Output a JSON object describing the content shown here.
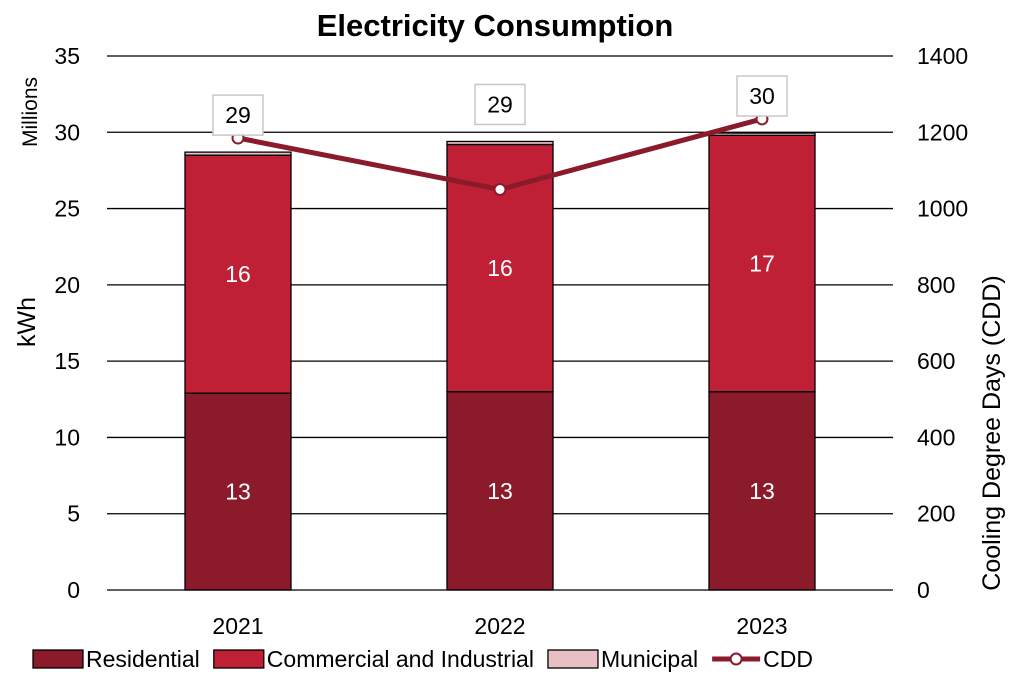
{
  "chart_data": {
    "type": "bar",
    "stacked": true,
    "title": "Electricity Consumption",
    "categories": [
      "2021",
      "2022",
      "2023"
    ],
    "series": [
      {
        "name": "Residential",
        "values": [
          12.9,
          13.0,
          13.0
        ],
        "labels": [
          "13",
          "13",
          "13"
        ],
        "color": "#8B1A2B"
      },
      {
        "name": "Commercial and Industrial",
        "values": [
          15.6,
          16.2,
          16.8
        ],
        "labels": [
          "16",
          "16",
          "17"
        ],
        "color": "#C02035"
      },
      {
        "name": "Municipal",
        "values": [
          0.2,
          0.2,
          0.15
        ],
        "color": "#E8BFC3"
      }
    ],
    "totals": [
      "29",
      "29",
      "30"
    ],
    "line_series": {
      "name": "CDD",
      "values": [
        1185,
        1050,
        1235
      ],
      "color": "#8B1A2B",
      "axis": "right"
    },
    "yaxis_left": {
      "label": "kWh",
      "units": "Millions",
      "min": 0,
      "max": 35,
      "step": 5,
      "ticks": [
        "0",
        "5",
        "10",
        "15",
        "20",
        "25",
        "30",
        "35"
      ]
    },
    "yaxis_right": {
      "label": "Cooling Degree Days (CDD)",
      "min": 0,
      "max": 1400,
      "step": 200,
      "ticks": [
        "0",
        "200",
        "400",
        "600",
        "800",
        "1000",
        "1200",
        "1400"
      ]
    },
    "grid": true,
    "legend_position": "bottom"
  }
}
